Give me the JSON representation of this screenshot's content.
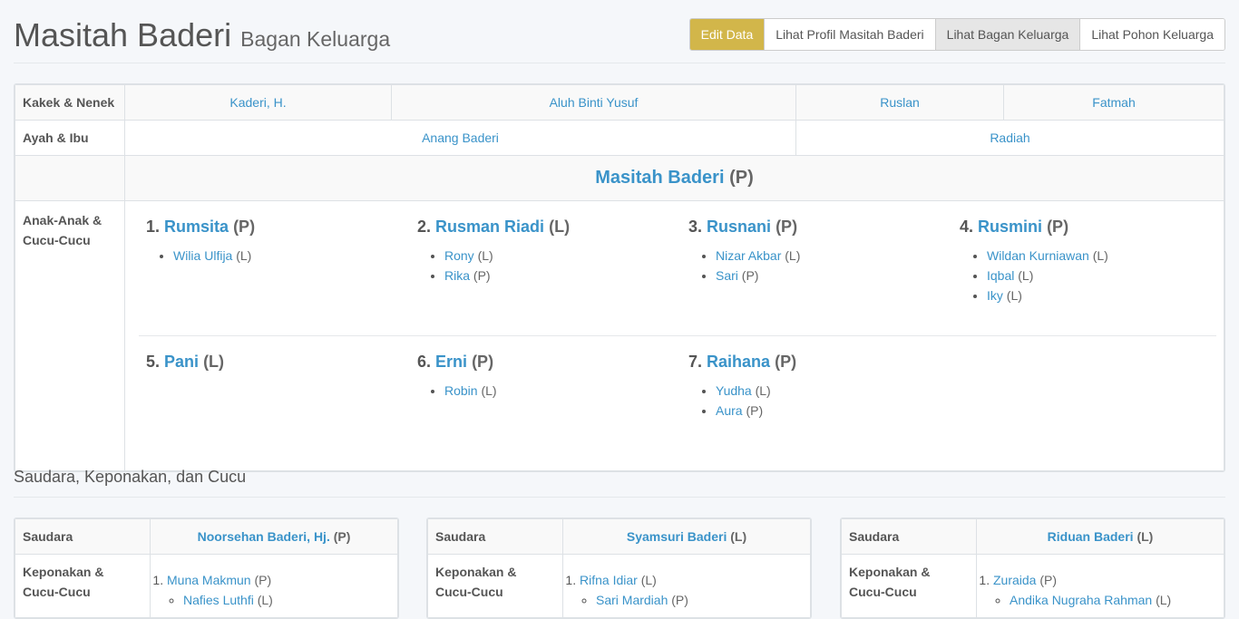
{
  "header": {
    "title": "Masitah Baderi",
    "subtitle": "Bagan Keluarga"
  },
  "buttons": [
    "Edit Data",
    "Lihat Profil Masitah Baderi",
    "Lihat Bagan Keluarga",
    "Lihat Pohon Keluarga"
  ],
  "rows": {
    "grandparents_label": "Kakek & Nenek",
    "parents_label": "Ayah & Ibu",
    "children_label": "Anak-Anak & Cucu-Cucu"
  },
  "grandparents": [
    "Kaderi, H.",
    "Aluh Binti Yusuf",
    "Ruslan",
    "Fatmah"
  ],
  "parents": [
    "Anang Baderi",
    "Radiah"
  ],
  "person": {
    "name": "Masitah Baderi",
    "gender": "(P)"
  },
  "children": [
    {
      "num": "1.",
      "name": "Rumsita",
      "gender": "(P)",
      "kids": [
        {
          "name": "Wilia Ulfija",
          "gender": "(L)"
        }
      ]
    },
    {
      "num": "2.",
      "name": "Rusman Riadi",
      "gender": "(L)",
      "kids": [
        {
          "name": "Rony",
          "gender": "(L)"
        },
        {
          "name": "Rika",
          "gender": "(P)"
        }
      ]
    },
    {
      "num": "3.",
      "name": "Rusnani",
      "gender": "(P)",
      "kids": [
        {
          "name": "Nizar Akbar",
          "gender": "(L)"
        },
        {
          "name": "Sari",
          "gender": "(P)"
        }
      ]
    },
    {
      "num": "4.",
      "name": "Rusmini",
      "gender": "(P)",
      "kids": [
        {
          "name": "Wildan Kurniawan",
          "gender": "(L)"
        },
        {
          "name": "Iqbal",
          "gender": "(L)"
        },
        {
          "name": "Iky",
          "gender": "(L)"
        }
      ]
    },
    {
      "num": "5.",
      "name": "Pani",
      "gender": "(L)",
      "kids": []
    },
    {
      "num": "6.",
      "name": "Erni",
      "gender": "(P)",
      "kids": [
        {
          "name": "Robin",
          "gender": "(L)"
        }
      ]
    },
    {
      "num": "7.",
      "name": "Raihana",
      "gender": "(P)",
      "kids": [
        {
          "name": "Yudha",
          "gender": "(L)"
        },
        {
          "name": "Aura",
          "gender": "(P)"
        }
      ]
    }
  ],
  "siblings_section": {
    "title": "Saudara, Keponakan, dan Cucu",
    "sibling_label": "Saudara",
    "nephew_label": "Keponakan & Cucu-Cucu"
  },
  "siblings": [
    {
      "name": "Noorsehan Baderi, Hj.",
      "gender": "(P)",
      "nephews": [
        {
          "name": "Muna Makmun",
          "gender": "(P)",
          "kids": [
            {
              "name": "Nafies Luthfi",
              "gender": "(L)"
            }
          ]
        }
      ]
    },
    {
      "name": "Syamsuri Baderi",
      "gender": "(L)",
      "nephews": [
        {
          "name": "Rifna Idiar",
          "gender": "(L)",
          "kids": [
            {
              "name": "Sari Mardiah",
              "gender": "(P)"
            }
          ]
        }
      ]
    },
    {
      "name": "Riduan Baderi",
      "gender": "(L)",
      "nephews": [
        {
          "name": "Zuraida",
          "gender": "(P)",
          "kids": [
            {
              "name": "Andika Nugraha Rahman",
              "gender": "(L)"
            }
          ]
        }
      ]
    }
  ]
}
